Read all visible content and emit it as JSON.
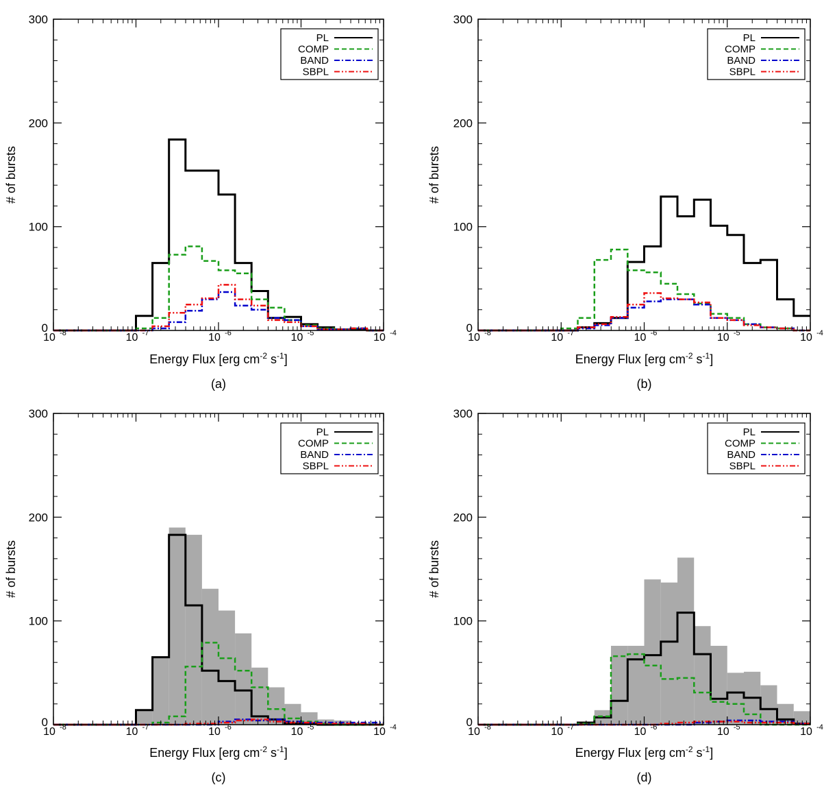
{
  "chart_data": [
    {
      "type": "histogram",
      "panel_label": "(a)",
      "xlabel": "Energy Flux [erg cm",
      "xlabel_exp1": "-2",
      "xlabel_mid": " s",
      "xlabel_exp2": "-1",
      "xlabel_end": "]",
      "ylabel": "# of bursts",
      "xscale": "log",
      "xlim": [
        1e-08,
        0.0001
      ],
      "ylim": [
        0,
        300
      ],
      "x_ticks": [
        {
          "base": "10",
          "exp": "-8"
        },
        {
          "base": "10",
          "exp": "-7"
        },
        {
          "base": "10",
          "exp": "-6"
        },
        {
          "base": "10",
          "exp": "-5"
        },
        {
          "base": "10",
          "exp": "-4"
        }
      ],
      "y_ticks": [
        "0",
        "100",
        "200",
        "300"
      ],
      "legend_position": "top-right",
      "legend": [
        "PL",
        "COMP",
        "BAND",
        "SBPL"
      ],
      "bin_edges_log10": [
        -8.0,
        -7.8,
        -7.6,
        -7.4,
        -7.2,
        -7.0,
        -6.8,
        -6.6,
        -6.4,
        -6.2,
        -6.0,
        -5.8,
        -5.6,
        -5.4,
        -5.2,
        -5.0,
        -4.8,
        -4.6,
        -4.4,
        -4.2,
        -4.0
      ],
      "series": [
        {
          "name": "PL",
          "color": "#000000",
          "dash": "solid",
          "values": [
            0,
            0,
            0,
            0,
            0,
            14,
            65,
            184,
            154,
            154,
            131,
            65,
            38,
            12,
            13,
            6,
            3,
            1,
            1,
            0
          ]
        },
        {
          "name": "COMP",
          "color": "#1a9e1a",
          "dash": "dashed",
          "values": [
            0,
            0,
            0,
            0,
            0,
            2,
            12,
            73,
            81,
            67,
            58,
            55,
            30,
            22,
            10,
            5,
            2,
            1,
            2,
            0
          ]
        },
        {
          "name": "BAND",
          "color": "#0000cc",
          "dash": "dashdot",
          "values": [
            0,
            0,
            0,
            0,
            0,
            0,
            2,
            8,
            19,
            30,
            37,
            24,
            20,
            12,
            10,
            4,
            1,
            1,
            2,
            0
          ]
        },
        {
          "name": "SBPL",
          "color": "#ee1111",
          "dash": "dashdotdot",
          "values": [
            0,
            0,
            0,
            0,
            0,
            0,
            4,
            17,
            25,
            31,
            44,
            30,
            24,
            10,
            8,
            4,
            1,
            1,
            2,
            0
          ]
        }
      ]
    },
    {
      "type": "histogram",
      "panel_label": "(b)",
      "xlabel": "Energy Flux [erg cm",
      "xlabel_exp1": "-2",
      "xlabel_mid": " s",
      "xlabel_exp2": "-1",
      "xlabel_end": "]",
      "ylabel": "# of bursts",
      "xscale": "log",
      "xlim": [
        1e-08,
        0.0001
      ],
      "ylim": [
        0,
        300
      ],
      "x_ticks": [
        {
          "base": "10",
          "exp": "-8"
        },
        {
          "base": "10",
          "exp": "-7"
        },
        {
          "base": "10",
          "exp": "-6"
        },
        {
          "base": "10",
          "exp": "-5"
        },
        {
          "base": "10",
          "exp": "-4"
        }
      ],
      "y_ticks": [
        "0",
        "100",
        "200",
        "300"
      ],
      "legend_position": "top-right",
      "legend": [
        "PL",
        "COMP",
        "BAND",
        "SBPL"
      ],
      "bin_edges_log10": [
        -8.0,
        -7.8,
        -7.6,
        -7.4,
        -7.2,
        -7.0,
        -6.8,
        -6.6,
        -6.4,
        -6.2,
        -6.0,
        -5.8,
        -5.6,
        -5.4,
        -5.2,
        -5.0,
        -4.8,
        -4.6,
        -4.4,
        -4.2,
        -4.0
      ],
      "series": [
        {
          "name": "PL",
          "color": "#000000",
          "dash": "solid",
          "values": [
            0,
            0,
            0,
            0,
            0,
            0,
            3,
            7,
            12,
            66,
            81,
            129,
            110,
            126,
            101,
            92,
            65,
            68,
            30,
            14
          ]
        },
        {
          "name": "COMP",
          "color": "#1a9e1a",
          "dash": "dashed",
          "values": [
            0,
            0,
            0,
            0,
            0,
            2,
            12,
            68,
            78,
            58,
            56,
            45,
            35,
            26,
            16,
            12,
            6,
            3,
            2,
            0
          ]
        },
        {
          "name": "BAND",
          "color": "#0000cc",
          "dash": "dashdot",
          "values": [
            0,
            0,
            0,
            0,
            0,
            0,
            2,
            5,
            12,
            22,
            28,
            30,
            30,
            25,
            12,
            10,
            6,
            3,
            2,
            0
          ]
        },
        {
          "name": "SBPL",
          "color": "#ee1111",
          "dash": "dashdotdot",
          "values": [
            0,
            0,
            0,
            0,
            0,
            0,
            3,
            6,
            13,
            25,
            36,
            31,
            30,
            27,
            12,
            10,
            5,
            3,
            2,
            0
          ]
        }
      ]
    },
    {
      "type": "histogram",
      "panel_label": "(c)",
      "xlabel": "Energy Flux [erg cm",
      "xlabel_exp1": "-2",
      "xlabel_mid": " s",
      "xlabel_exp2": "-1",
      "xlabel_end": "]",
      "ylabel": "# of bursts",
      "xscale": "log",
      "xlim": [
        1e-08,
        0.0001
      ],
      "ylim": [
        0,
        300
      ],
      "x_ticks": [
        {
          "base": "10",
          "exp": "-8"
        },
        {
          "base": "10",
          "exp": "-7"
        },
        {
          "base": "10",
          "exp": "-6"
        },
        {
          "base": "10",
          "exp": "-5"
        },
        {
          "base": "10",
          "exp": "-4"
        }
      ],
      "y_ticks": [
        "0",
        "100",
        "200",
        "300"
      ],
      "legend_position": "top-right",
      "legend": [
        "PL",
        "COMP",
        "BAND",
        "SBPL"
      ],
      "bin_edges_log10": [
        -8.0,
        -7.8,
        -7.6,
        -7.4,
        -7.2,
        -7.0,
        -6.8,
        -6.6,
        -6.4,
        -6.2,
        -6.0,
        -5.8,
        -5.6,
        -5.4,
        -5.2,
        -5.0,
        -4.8,
        -4.6,
        -4.4,
        -4.2,
        -4.0
      ],
      "shaded_total": {
        "color": "#aaaaaa",
        "values": [
          0,
          0,
          0,
          0,
          0,
          14,
          65,
          190,
          183,
          131,
          110,
          88,
          55,
          36,
          20,
          12,
          5,
          4,
          2,
          1
        ]
      },
      "series": [
        {
          "name": "PL",
          "color": "#000000",
          "dash": "solid",
          "values": [
            0,
            0,
            0,
            0,
            0,
            14,
            65,
            183,
            115,
            52,
            42,
            33,
            8,
            5,
            1,
            1,
            0,
            0,
            0,
            0
          ]
        },
        {
          "name": "COMP",
          "color": "#1a9e1a",
          "dash": "dashed",
          "values": [
            0,
            0,
            0,
            0,
            0,
            0,
            2,
            8,
            56,
            79,
            64,
            52,
            36,
            15,
            6,
            3,
            1,
            0,
            0,
            0
          ]
        },
        {
          "name": "BAND",
          "color": "#0000cc",
          "dash": "dashdot",
          "values": [
            0,
            0,
            0,
            0,
            0,
            0,
            0,
            0,
            0,
            0,
            3,
            5,
            4,
            5,
            3,
            2,
            2,
            2,
            2,
            2
          ]
        },
        {
          "name": "SBPL",
          "color": "#ee1111",
          "dash": "dashdotdot",
          "values": [
            0,
            0,
            0,
            0,
            0,
            0,
            0,
            0,
            1,
            1,
            2,
            4,
            5,
            3,
            2,
            2,
            1,
            1,
            1,
            0
          ]
        }
      ]
    },
    {
      "type": "histogram",
      "panel_label": "(d)",
      "xlabel": "Energy Flux [erg cm",
      "xlabel_exp1": "-2",
      "xlabel_mid": " s",
      "xlabel_exp2": "-1",
      "xlabel_end": "]",
      "ylabel": "# of bursts",
      "xscale": "log",
      "xlim": [
        1e-08,
        0.0001
      ],
      "ylim": [
        0,
        300
      ],
      "x_ticks": [
        {
          "base": "10",
          "exp": "-8"
        },
        {
          "base": "10",
          "exp": "-7"
        },
        {
          "base": "10",
          "exp": "-6"
        },
        {
          "base": "10",
          "exp": "-5"
        },
        {
          "base": "10",
          "exp": "-4"
        }
      ],
      "y_ticks": [
        "0",
        "100",
        "200",
        "300"
      ],
      "legend_position": "top-right",
      "legend": [
        "PL",
        "COMP",
        "BAND",
        "SBPL"
      ],
      "bin_edges_log10": [
        -8.0,
        -7.8,
        -7.6,
        -7.4,
        -7.2,
        -7.0,
        -6.8,
        -6.6,
        -6.4,
        -6.2,
        -6.0,
        -5.8,
        -5.6,
        -5.4,
        -5.2,
        -5.0,
        -4.8,
        -4.6,
        -4.4,
        -4.2,
        -4.0
      ],
      "shaded_total": {
        "color": "#aaaaaa",
        "values": [
          0,
          0,
          0,
          0,
          0,
          0,
          3,
          14,
          76,
          76,
          140,
          137,
          161,
          95,
          76,
          50,
          51,
          38,
          20,
          13
        ]
      },
      "series": [
        {
          "name": "PL",
          "color": "#000000",
          "dash": "solid",
          "values": [
            0,
            0,
            0,
            0,
            0,
            0,
            2,
            7,
            23,
            63,
            67,
            80,
            108,
            68,
            25,
            31,
            26,
            15,
            5,
            1
          ]
        },
        {
          "name": "COMP",
          "color": "#1a9e1a",
          "dash": "dashed",
          "values": [
            0,
            0,
            0,
            0,
            0,
            0,
            1,
            8,
            66,
            68,
            57,
            44,
            45,
            31,
            22,
            20,
            10,
            0,
            0,
            0
          ]
        },
        {
          "name": "BAND",
          "color": "#0000cc",
          "dash": "dashdot",
          "values": [
            0,
            0,
            0,
            0,
            0,
            0,
            0,
            0,
            0,
            0,
            0,
            0,
            0,
            2,
            3,
            4,
            4,
            3,
            3,
            1
          ]
        },
        {
          "name": "SBPL",
          "color": "#ee1111",
          "dash": "dashdotdot",
          "values": [
            0,
            0,
            0,
            0,
            0,
            0,
            0,
            0,
            0,
            0,
            0,
            1,
            2,
            3,
            3,
            3,
            2,
            2,
            2,
            1
          ]
        }
      ]
    }
  ]
}
